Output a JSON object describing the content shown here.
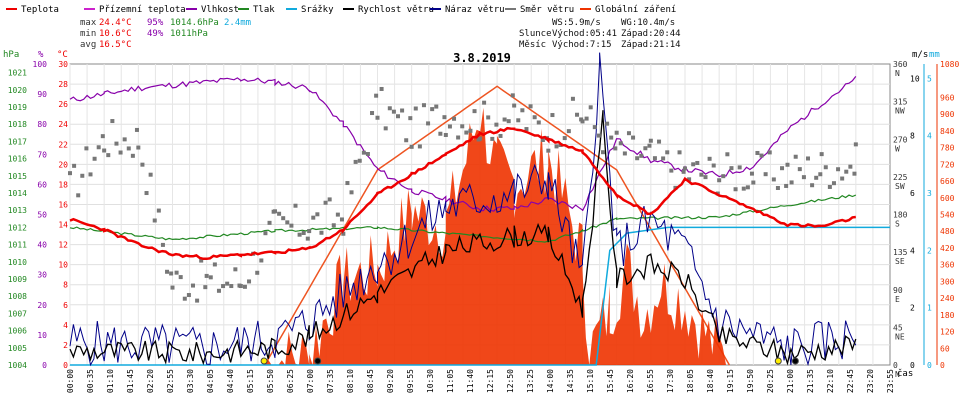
{
  "chart_data": {
    "type": "line",
    "title": "3.8.2019",
    "legend": [
      {
        "name": "Teplota",
        "color": "#ee0000"
      },
      {
        "name": "Přízemní teplota",
        "color": "#cc22cc"
      },
      {
        "name": "Vlhkost",
        "color": "#8800aa"
      },
      {
        "name": "Tlak",
        "color": "#228822"
      },
      {
        "name": "Srážky",
        "color": "#11aadd"
      },
      {
        "name": "Rychlost větru",
        "color": "#000000"
      },
      {
        "name": "Náraz větru",
        "color": "#000088"
      },
      {
        "name": "Směr větru",
        "color": "#777777"
      },
      {
        "name": "Globální záření",
        "color": "#ee3300"
      }
    ],
    "stats": {
      "max_label": "max",
      "max_temp": "24.4°C",
      "max_hum": "95%",
      "max_press": "1014.6hPa",
      "max_rain": "2.4mm",
      "min_label": "min",
      "min_temp": "10.6°C",
      "min_hum": "49%",
      "min_press": "1011hPa",
      "avg_label": "avg",
      "avg_temp": "16.5°C",
      "ws": "WS:5.9m/s",
      "wg": "WG:10.4m/s",
      "sun_label": "Slunce",
      "sun_rise": "Východ:05:41",
      "sun_set": "Západ:20:44",
      "moon_label": "Měsíc",
      "moon_rise": "Východ:7:15",
      "moon_set": "Západ:21:14"
    },
    "axes": {
      "hpa_unit": "hPa",
      "pct_unit": "%",
      "deg_unit": "°C",
      "ms_unit": "m/s",
      "mm_unit": "mm",
      "cas_label": "čas",
      "hpa_ticks": [
        "1004",
        "1005",
        "1006",
        "1007",
        "1008",
        "1009",
        "1010",
        "1011",
        "1012",
        "1013",
        "1014",
        "1015",
        "1016",
        "1017",
        "1018",
        "1019",
        "1020",
        "1021"
      ],
      "pct_ticks": [
        "0",
        "10",
        "20",
        "30",
        "40",
        "50",
        "60",
        "70",
        "80",
        "90",
        "100"
      ],
      "deg_ticks": [
        "0",
        "2",
        "4",
        "6",
        "8",
        "10",
        "12",
        "14",
        "16",
        "18",
        "20",
        "22",
        "24",
        "26",
        "28",
        "30"
      ],
      "dir_ticks": [
        "0",
        "45",
        "90",
        "135",
        "180",
        "225",
        "270",
        "315",
        "360"
      ],
      "dir_names": [
        "N",
        "NE",
        "E",
        "SE",
        "S",
        "SW",
        "W",
        "NW",
        "N"
      ],
      "wind_ticks": [
        "0",
        "2",
        "4",
        "6",
        "8",
        "10"
      ],
      "rain_ticks": [
        "0",
        "1",
        "2",
        "3",
        "4",
        "5"
      ],
      "rad_ticks": [
        "0",
        "60",
        "120",
        "180",
        "240",
        "300",
        "360",
        "420",
        "480",
        "540",
        "600",
        "660",
        "720",
        "780",
        "840",
        "900",
        "960",
        "1080"
      ],
      "time_ticks": [
        "00:00",
        "00:35",
        "01:10",
        "01:45",
        "02:20",
        "02:55",
        "03:30",
        "04:05",
        "04:40",
        "05:15",
        "05:50",
        "06:25",
        "07:00",
        "07:35",
        "08:10",
        "08:45",
        "09:20",
        "09:55",
        "10:30",
        "11:05",
        "11:40",
        "12:15",
        "12:50",
        "13:25",
        "14:00",
        "14:35",
        "15:10",
        "15:45",
        "16:20",
        "16:55",
        "17:30",
        "18:05",
        "18:40",
        "19:15",
        "19:50",
        "20:25",
        "21:00",
        "21:35",
        "22:10",
        "22:45",
        "23:20",
        "23:55"
      ]
    },
    "series": {
      "temperature_c": [
        [
          0,
          14.5
        ],
        [
          1,
          13.5
        ],
        [
          2,
          12.0
        ],
        [
          3,
          11.0
        ],
        [
          4,
          10.7
        ],
        [
          5,
          11.0
        ],
        [
          6,
          11.2
        ],
        [
          7,
          11.6
        ],
        [
          8,
          13.5
        ],
        [
          9,
          17.0
        ],
        [
          10,
          19.0
        ],
        [
          11,
          21.0
        ],
        [
          12,
          23.0
        ],
        [
          13,
          23.6
        ],
        [
          14,
          22.5
        ],
        [
          15,
          21.3
        ],
        [
          16,
          17.0
        ],
        [
          17,
          15.0
        ],
        [
          18,
          18.5
        ],
        [
          19,
          17.0
        ],
        [
          20,
          15.5
        ],
        [
          21,
          14.0
        ],
        [
          22,
          13.8
        ],
        [
          23,
          14.7
        ]
      ],
      "humidity_pct": [
        [
          0,
          88
        ],
        [
          1,
          90
        ],
        [
          2,
          92
        ],
        [
          3,
          93
        ],
        [
          4,
          94
        ],
        [
          5,
          95
        ],
        [
          6,
          94
        ],
        [
          7,
          92
        ],
        [
          8,
          80
        ],
        [
          9,
          65
        ],
        [
          10,
          58
        ],
        [
          11,
          55
        ],
        [
          12,
          52
        ],
        [
          13,
          52
        ],
        [
          14,
          55
        ],
        [
          15,
          52
        ],
        [
          16,
          75
        ],
        [
          17,
          68
        ],
        [
          18,
          65
        ],
        [
          19,
          63
        ],
        [
          20,
          66
        ],
        [
          21,
          78
        ],
        [
          22,
          87
        ],
        [
          23,
          95
        ]
      ],
      "pressure_hpa": [
        [
          0,
          1012.0
        ],
        [
          3,
          1011.3
        ],
        [
          6,
          1011.8
        ],
        [
          9,
          1012.0
        ],
        [
          12,
          1011.5
        ],
        [
          14,
          1011.2
        ],
        [
          15,
          1011.8
        ],
        [
          16,
          1012.5
        ],
        [
          19,
          1012.6
        ],
        [
          21,
          1013.3
        ],
        [
          23,
          1013.9
        ]
      ],
      "rain_mm": [
        [
          0,
          0
        ],
        [
          15.4,
          0
        ],
        [
          15.8,
          2.0
        ],
        [
          16.3,
          2.3
        ],
        [
          17.5,
          2.4
        ],
        [
          24,
          2.4
        ]
      ],
      "wind_speed_ms": [
        [
          0,
          0.5
        ],
        [
          4,
          0.4
        ],
        [
          6,
          0.6
        ],
        [
          7,
          1.0
        ],
        [
          9,
          2.5
        ],
        [
          11,
          4.0
        ],
        [
          13,
          4.5
        ],
        [
          14,
          4.5
        ],
        [
          15,
          2.0
        ],
        [
          15.6,
          8.5
        ],
        [
          16,
          3.0
        ],
        [
          17,
          3.5
        ],
        [
          18,
          3.0
        ],
        [
          19,
          1.0
        ],
        [
          21,
          0.4
        ],
        [
          23,
          0.7
        ]
      ],
      "wind_gust_ms": [
        [
          0,
          0.8
        ],
        [
          4,
          0.6
        ],
        [
          6,
          0.9
        ],
        [
          7,
          1.5
        ],
        [
          9,
          3.5
        ],
        [
          11,
          5.5
        ],
        [
          13,
          6.0
        ],
        [
          14,
          6.5
        ],
        [
          15,
          3.0
        ],
        [
          15.5,
          10.4
        ],
        [
          16,
          4.0
        ],
        [
          17,
          5.0
        ],
        [
          18,
          4.0
        ],
        [
          19,
          1.5
        ],
        [
          21,
          0.6
        ],
        [
          23,
          1.0
        ]
      ],
      "wind_dir_deg": [
        [
          0,
          210
        ],
        [
          1,
          270
        ],
        [
          2,
          270
        ],
        [
          3,
          100
        ],
        [
          4,
          100
        ],
        [
          5,
          100
        ],
        [
          6,
          165
        ],
        [
          7,
          168
        ],
        [
          8,
          180
        ],
        [
          9,
          310
        ],
        [
          10,
          280
        ],
        [
          11,
          300
        ],
        [
          12,
          290
        ],
        [
          13,
          300
        ],
        [
          14,
          280
        ],
        [
          15,
          300
        ],
        [
          16,
          260
        ],
        [
          17,
          250
        ],
        [
          18,
          230
        ],
        [
          19,
          230
        ],
        [
          20,
          230
        ],
        [
          21,
          230
        ],
        [
          22,
          235
        ],
        [
          23,
          240
        ]
      ],
      "radiation_clear_wm2": [
        [
          5.7,
          0
        ],
        [
          9,
          700
        ],
        [
          12.5,
          1000
        ],
        [
          16,
          700
        ],
        [
          19.3,
          0
        ]
      ],
      "radiation_wm2": [
        [
          5.7,
          0
        ],
        [
          7,
          40
        ],
        [
          8,
          300
        ],
        [
          9,
          350
        ],
        [
          10,
          550
        ],
        [
          11,
          500
        ],
        [
          12,
          900
        ],
        [
          12.5,
          700
        ],
        [
          13,
          650
        ],
        [
          14,
          750
        ],
        [
          15,
          400
        ],
        [
          15.2,
          40
        ],
        [
          15.8,
          200
        ],
        [
          16.3,
          350
        ],
        [
          16.8,
          180
        ],
        [
          17.3,
          300
        ],
        [
          18,
          220
        ],
        [
          18.8,
          80
        ],
        [
          19.3,
          0
        ]
      ]
    }
  }
}
